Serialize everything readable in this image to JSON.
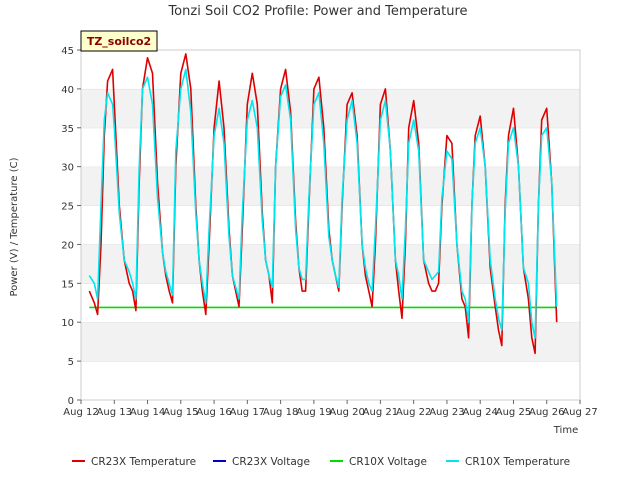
{
  "chart_data": {
    "type": "line",
    "title": "Tonzi Soil CO2 Profile: Power and Temperature",
    "xlabel": "Time",
    "ylabel": "Power (V) / Temperature (C)",
    "annotation": "TZ_soilco2",
    "ylim": [
      0,
      45
    ],
    "yticks": [
      0,
      5,
      10,
      15,
      20,
      25,
      30,
      35,
      40,
      45
    ],
    "xlim": [
      12,
      27
    ],
    "xticks": [
      {
        "v": 12,
        "label": "Aug 12"
      },
      {
        "v": 13,
        "label": "Aug 13"
      },
      {
        "v": 14,
        "label": "Aug 14"
      },
      {
        "v": 15,
        "label": "Aug 15"
      },
      {
        "v": 16,
        "label": "Aug 16"
      },
      {
        "v": 17,
        "label": "Aug 17"
      },
      {
        "v": 18,
        "label": "Aug 18"
      },
      {
        "v": 19,
        "label": "Aug 19"
      },
      {
        "v": 20,
        "label": "Aug 20"
      },
      {
        "v": 21,
        "label": "Aug 21"
      },
      {
        "v": 22,
        "label": "Aug 22"
      },
      {
        "v": 23,
        "label": "Aug 23"
      },
      {
        "v": 24,
        "label": "Aug 24"
      },
      {
        "v": 25,
        "label": "Aug 25"
      },
      {
        "v": 26,
        "label": "Aug 26"
      },
      {
        "v": 27,
        "label": "Aug 27"
      }
    ],
    "grid": "horizontal bands",
    "legend_position": "bottom",
    "series": [
      {
        "name": "CR23X Temperature",
        "color": "#dd0000",
        "x": [
          12.25,
          12.4,
          12.5,
          12.6,
          12.7,
          12.8,
          12.95,
          13.0,
          13.15,
          13.3,
          13.45,
          13.55,
          13.65,
          13.75,
          13.85,
          14.0,
          14.15,
          14.3,
          14.45,
          14.55,
          14.65,
          14.75,
          14.85,
          15.0,
          15.15,
          15.3,
          15.45,
          15.55,
          15.65,
          15.75,
          15.85,
          16.0,
          16.15,
          16.3,
          16.45,
          16.55,
          16.65,
          16.75,
          16.85,
          17.0,
          17.15,
          17.3,
          17.45,
          17.55,
          17.65,
          17.75,
          17.85,
          18.0,
          18.15,
          18.3,
          18.45,
          18.55,
          18.65,
          18.75,
          18.85,
          19.0,
          19.15,
          19.3,
          19.45,
          19.55,
          19.65,
          19.75,
          19.85,
          20.0,
          20.15,
          20.3,
          20.45,
          20.55,
          20.65,
          20.75,
          20.85,
          21.0,
          21.15,
          21.3,
          21.45,
          21.55,
          21.65,
          21.75,
          21.85,
          22.0,
          22.15,
          22.3,
          22.45,
          22.55,
          22.65,
          22.75,
          22.85,
          23.0,
          23.15,
          23.3,
          23.45,
          23.55,
          23.65,
          23.75,
          23.85,
          24.0,
          24.15,
          24.3,
          24.45,
          24.55,
          24.65,
          24.75,
          24.85,
          25.0,
          25.15,
          25.3,
          25.45,
          25.55,
          25.65,
          25.75,
          25.85,
          26.0,
          26.15,
          26.3
        ],
        "y": [
          14.0,
          12.5,
          11.0,
          20.0,
          34.0,
          41.0,
          42.5,
          38.0,
          25.0,
          18.0,
          15.0,
          14.0,
          11.5,
          28.0,
          40.0,
          44.0,
          42.0,
          28.0,
          19.0,
          16.0,
          14.0,
          12.5,
          30.0,
          42.0,
          44.5,
          40.0,
          25.0,
          18.0,
          14.0,
          11.0,
          20.0,
          35.0,
          41.0,
          35.0,
          22.0,
          16.0,
          14.0,
          12.0,
          22.0,
          38.0,
          42.0,
          38.0,
          24.0,
          18.0,
          16.0,
          12.5,
          30.0,
          40.0,
          42.5,
          37.0,
          23.0,
          17.0,
          14.0,
          14.0,
          25.0,
          40.0,
          41.5,
          35.0,
          22.0,
          18.0,
          16.0,
          14.0,
          25.0,
          38.0,
          39.5,
          34.0,
          20.0,
          16.0,
          14.0,
          12.0,
          20.0,
          38.0,
          40.0,
          32.0,
          18.0,
          14.0,
          10.5,
          20.0,
          35.0,
          38.5,
          33.0,
          18.0,
          15.0,
          14.0,
          14.0,
          15.0,
          25.0,
          34.0,
          33.0,
          20.0,
          13.0,
          12.0,
          8.0,
          25.0,
          34.0,
          36.5,
          30.0,
          17.0,
          12.0,
          9.0,
          7.0,
          25.0,
          34.0,
          37.5,
          30.0,
          17.0,
          13.0,
          8.0,
          6.0,
          25.0,
          36.0,
          37.5,
          28.0,
          10.0
        ]
      },
      {
        "name": "CR23X Voltage",
        "color": "#0000cc",
        "x": [],
        "y": []
      },
      {
        "name": "CR10X Voltage",
        "color": "#00dd00",
        "x": [
          12.25,
          26.3
        ],
        "y": [
          11.9,
          11.9
        ]
      },
      {
        "name": "CR10X Temperature",
        "color": "#00e5ee",
        "x": [
          12.25,
          12.4,
          12.5,
          12.6,
          12.7,
          12.8,
          12.95,
          13.0,
          13.15,
          13.3,
          13.45,
          13.55,
          13.65,
          13.75,
          13.85,
          14.0,
          14.15,
          14.3,
          14.45,
          14.55,
          14.65,
          14.75,
          14.85,
          15.0,
          15.15,
          15.3,
          15.45,
          15.55,
          15.65,
          15.75,
          15.85,
          16.0,
          16.15,
          16.3,
          16.45,
          16.55,
          16.65,
          16.75,
          16.85,
          17.0,
          17.15,
          17.3,
          17.45,
          17.55,
          17.65,
          17.75,
          17.85,
          18.0,
          18.15,
          18.3,
          18.45,
          18.55,
          18.65,
          18.75,
          18.85,
          19.0,
          19.15,
          19.3,
          19.45,
          19.55,
          19.65,
          19.75,
          19.85,
          20.0,
          20.15,
          20.3,
          20.45,
          20.55,
          20.65,
          20.75,
          20.85,
          21.0,
          21.15,
          21.3,
          21.45,
          21.55,
          21.65,
          21.75,
          21.85,
          22.0,
          22.15,
          22.3,
          22.45,
          22.55,
          22.65,
          22.75,
          22.85,
          23.0,
          23.15,
          23.3,
          23.45,
          23.55,
          23.65,
          23.75,
          23.85,
          24.0,
          24.15,
          24.3,
          24.45,
          24.55,
          24.65,
          24.75,
          24.85,
          25.0,
          25.15,
          25.3,
          25.45,
          25.55,
          25.65,
          25.75,
          25.85,
          26.0,
          26.15,
          26.3
        ],
        "y": [
          16.0,
          15.0,
          13.0,
          25.0,
          36.0,
          39.5,
          38.0,
          35.0,
          24.0,
          18.0,
          16.5,
          15.0,
          13.0,
          30.0,
          40.0,
          41.5,
          38.0,
          26.0,
          19.0,
          16.5,
          15.0,
          13.5,
          32.0,
          40.0,
          42.5,
          37.0,
          24.0,
          18.0,
          15.0,
          12.5,
          22.0,
          34.0,
          37.5,
          33.0,
          21.0,
          16.0,
          14.5,
          13.0,
          24.0,
          36.0,
          38.5,
          35.0,
          23.0,
          18.0,
          16.0,
          14.5,
          30.0,
          39.0,
          40.5,
          36.0,
          22.0,
          17.0,
          15.5,
          15.5,
          26.0,
          38.0,
          39.5,
          33.0,
          21.0,
          18.0,
          16.0,
          14.5,
          26.0,
          36.0,
          38.5,
          33.0,
          20.0,
          17.0,
          15.0,
          14.0,
          22.0,
          36.0,
          38.5,
          32.0,
          18.0,
          16.0,
          13.0,
          22.0,
          33.0,
          36.0,
          32.0,
          18.0,
          16.5,
          15.5,
          16.0,
          16.5,
          26.0,
          32.0,
          31.0,
          20.0,
          14.0,
          13.0,
          10.0,
          25.0,
          33.0,
          35.0,
          30.0,
          18.0,
          13.0,
          10.5,
          9.0,
          24.0,
          33.0,
          35.0,
          30.0,
          17.0,
          15.0,
          10.0,
          8.0,
          25.0,
          34.0,
          35.0,
          28.0,
          12.0
        ]
      }
    ]
  }
}
